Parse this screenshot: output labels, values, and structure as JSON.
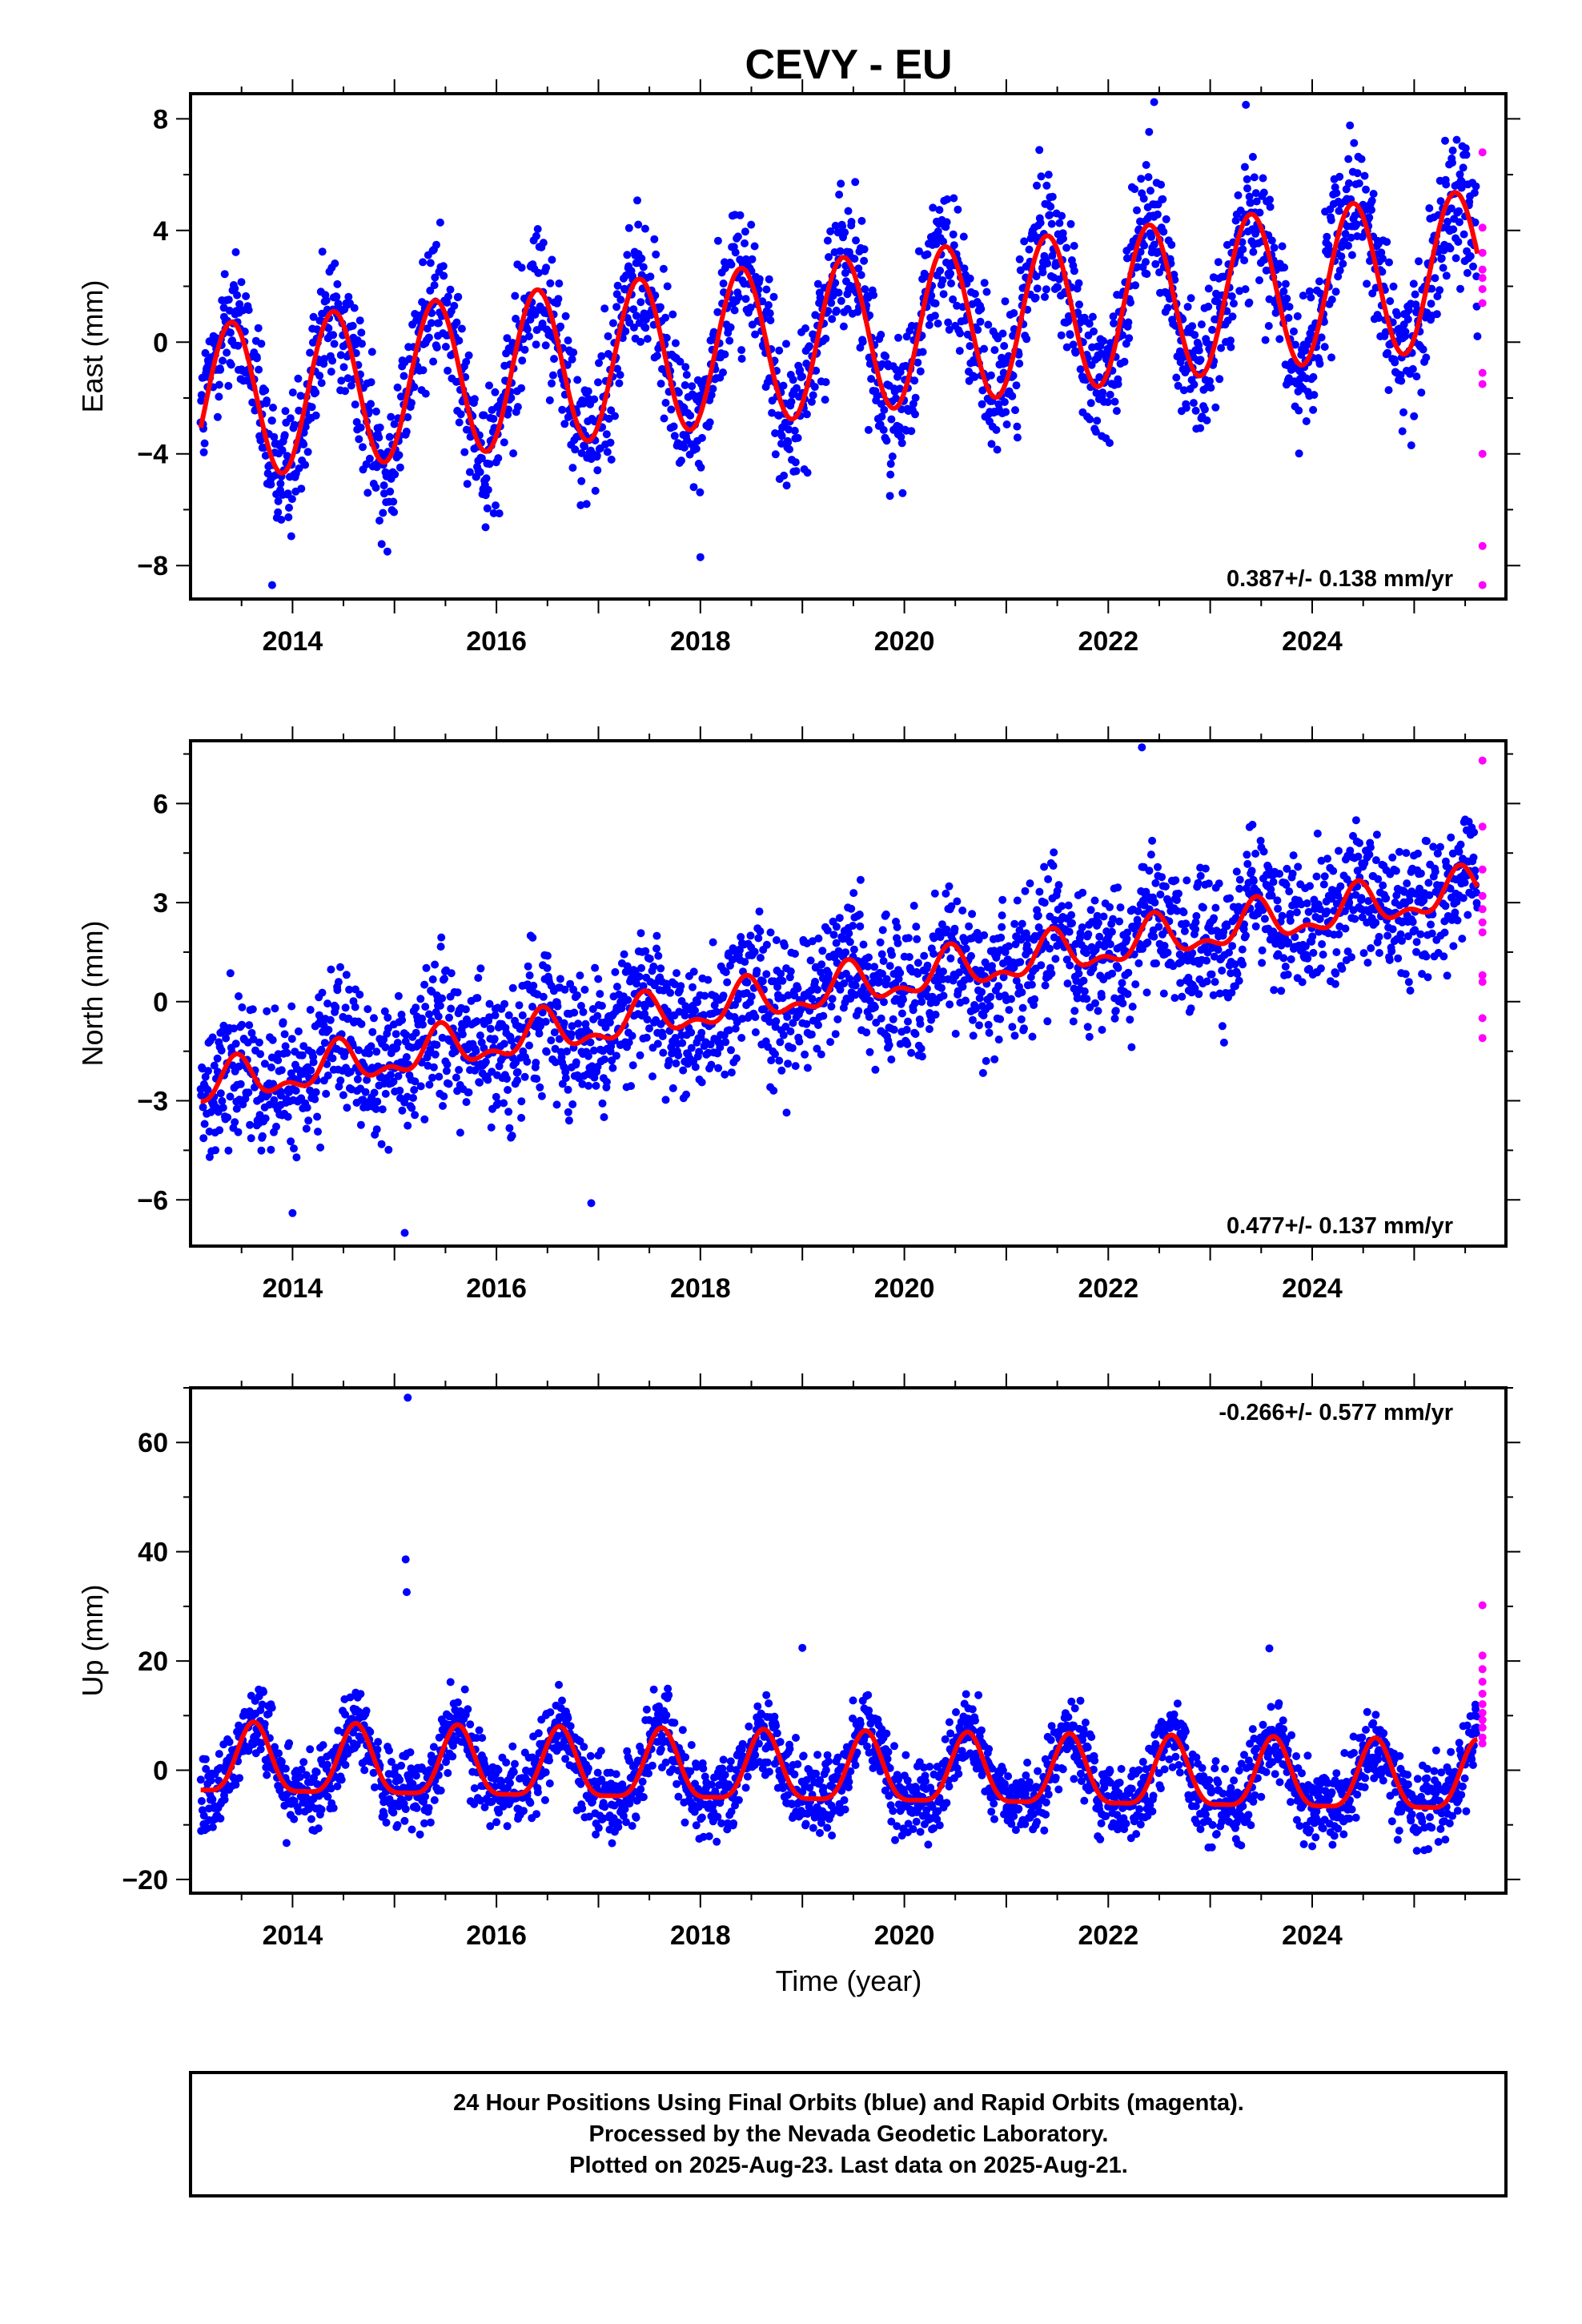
{
  "title": "CEVY - EU",
  "xlabel": "Time (year)",
  "footer": [
    "24 Hour Positions Using Final Orbits (blue) and Rapid Orbits (magenta).",
    "Processed by the Nevada Geodetic Laboratory.",
    "Plotted on 2025-Aug-23. Last data on 2025-Aug-21."
  ],
  "colors": {
    "final": "#0000ff",
    "rapid": "#ff00ff",
    "model": "#ff0000",
    "frame": "#000000"
  },
  "chart_data": [
    {
      "type": "scatter",
      "ylabel": "East (mm)",
      "xlim": [
        2013.0,
        2025.9
      ],
      "ylim": [
        -9.2,
        8.9
      ],
      "yticks": [
        8,
        4,
        0,
        -4,
        -8
      ],
      "xticks": [
        2014,
        2016,
        2018,
        2020,
        2022,
        2024
      ],
      "rate_text": "0.387+/- 0.138 mm/yr",
      "rate_position": "bottom-right",
      "x_start": 2013.1,
      "x_end": 2025.62,
      "model": {
        "offset": -2.2,
        "trend": 0.387,
        "annual_amp": 2.8,
        "annual_peak": 2013.4,
        "semiannual_amp": 0.0,
        "semiannual_peak": 2013.4,
        "noise": 1.25
      },
      "rapid_x": 2025.67,
      "rapid_values": [
        6.8,
        4.1,
        3.2,
        2.6,
        2.3,
        1.9,
        1.4,
        -1.1,
        -1.5,
        -4.0,
        -7.3,
        -8.7
      ],
      "outliers": [
        [
          2013.8,
          -8.7
        ],
        [
          2018.0,
          -7.7
        ],
        [
          2022.45,
          8.6
        ],
        [
          2023.35,
          8.5
        ]
      ]
    },
    {
      "type": "scatter",
      "ylabel": "North (mm)",
      "xlim": [
        2013.0,
        2025.9
      ],
      "ylim": [
        -7.4,
        7.9
      ],
      "yticks": [
        6,
        3,
        0,
        -3,
        -6
      ],
      "xticks": [
        2014,
        2016,
        2018,
        2020,
        2022,
        2024
      ],
      "rate_text": "0.477+/- 0.137 mm/yr",
      "rate_position": "bottom-right",
      "x_start": 2013.1,
      "x_end": 2025.62,
      "model": {
        "offset": -2.6,
        "trend": 0.477,
        "annual_amp": 0.55,
        "annual_peak": 2013.45,
        "semiannual_amp": 0.3,
        "semiannual_peak": 2013.45,
        "noise": 1.05
      },
      "rapid_x": 2025.67,
      "rapid_values": [
        7.3,
        5.3,
        4.0,
        3.2,
        2.8,
        2.4,
        2.1,
        0.8,
        0.6,
        -0.5,
        -1.1
      ],
      "outliers": [
        [
          2022.33,
          7.7
        ],
        [
          2015.1,
          -7.0
        ],
        [
          2016.93,
          -6.1
        ],
        [
          2014.0,
          -6.4
        ]
      ]
    },
    {
      "type": "scatter",
      "ylabel": "Up (mm)",
      "xlim": [
        2013.0,
        2025.9
      ],
      "ylim": [
        -22.5,
        70.0
      ],
      "yticks": [
        60,
        40,
        20,
        0,
        -20
      ],
      "xticks": [
        2014,
        2016,
        2018,
        2020,
        2022,
        2024
      ],
      "rate_text": "-0.266+/- 0.577 mm/yr",
      "rate_position": "top-right",
      "x_start": 2013.1,
      "x_end": 2025.62,
      "model": {
        "offset": 1.0,
        "trend": -0.266,
        "annual_amp": 6.3,
        "annual_peak": 2013.62,
        "semiannual_amp": 1.7,
        "semiannual_peak": 2013.62,
        "noise": 3.6
      },
      "rapid_x": 2025.67,
      "rapid_values": [
        30.2,
        21.0,
        18.5,
        16.2,
        14.0,
        12.1,
        10.5,
        9.2,
        7.8,
        6.0,
        4.9
      ],
      "outliers": [
        [
          2015.13,
          68.2
        ],
        [
          2015.11,
          38.6
        ],
        [
          2015.12,
          32.6
        ],
        [
          2019.0,
          22.4
        ],
        [
          2023.58,
          22.3
        ]
      ]
    }
  ]
}
